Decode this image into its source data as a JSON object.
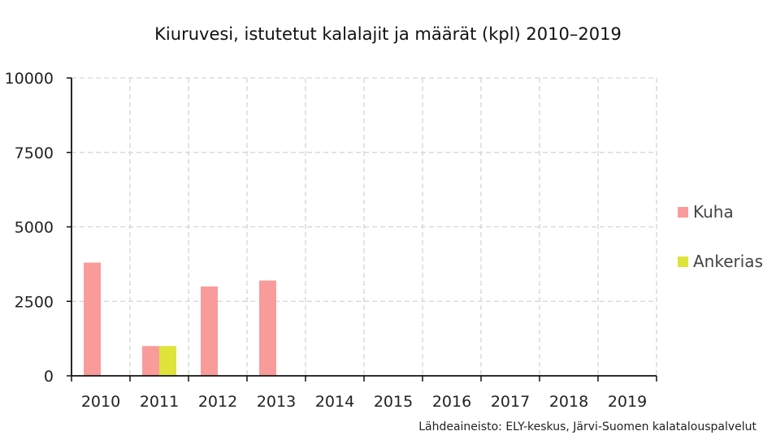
{
  "chart_data": {
    "type": "bar",
    "title": "Kiuruvesi, istutetut kalalajit ja määrät (kpl) 2010–2019",
    "source": "Lähdeaineisto: ELY-keskus, Järvi-Suomen kalatalouspalvelut",
    "categories": [
      "2010",
      "2011",
      "2012",
      "2013",
      "2014",
      "2015",
      "2016",
      "2017",
      "2018",
      "2019"
    ],
    "series": [
      {
        "name": "Kuha",
        "color": "#f99b9b",
        "values": [
          3800,
          1000,
          3000,
          3200,
          0,
          0,
          0,
          0,
          0,
          0
        ]
      },
      {
        "name": "Ankerias",
        "color": "#dfe33a",
        "values": [
          0,
          1000,
          0,
          0,
          0,
          0,
          0,
          0,
          0,
          0
        ]
      }
    ],
    "ylim": [
      0,
      10000
    ],
    "yticks": [
      "0",
      "2500",
      "5000",
      "7500",
      "10000"
    ],
    "grid": true,
    "legend_position": "right"
  }
}
